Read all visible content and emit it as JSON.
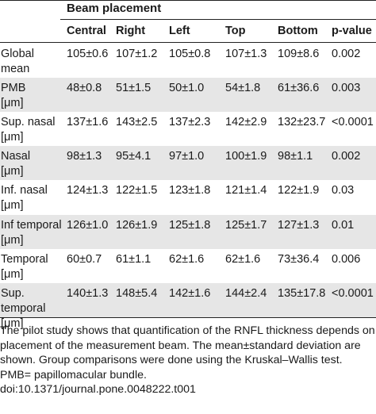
{
  "table": {
    "group_header": "Beam placement",
    "columns": [
      "Central",
      "Right",
      "Left",
      "Top",
      "Bottom",
      "p-value"
    ],
    "rows": [
      {
        "label": "Global mean\n[μm]",
        "values": [
          "105±0.6",
          "107±1.2",
          "105±0.8",
          "107±1.3",
          "109±8.6",
          "0.002"
        ]
      },
      {
        "label": "PMB\n[μm]",
        "values": [
          "48±0.8",
          "51±1.5",
          "50±1.0",
          "54±1.8",
          "61±36.6",
          "0.003"
        ]
      },
      {
        "label": "Sup. nasal\n[μm]",
        "values": [
          "137±1.6",
          "143±2.5",
          "137±2.3",
          "142±2.9",
          "132±23.7",
          "<0.0001"
        ]
      },
      {
        "label": "Nasal\n[μm]",
        "values": [
          "98±1.3",
          "95±4.1",
          "97±1.0",
          "100±1.9",
          "98±1.1",
          "0.002"
        ]
      },
      {
        "label": "Inf. nasal\n[μm]",
        "values": [
          "124±1.3",
          "122±1.5",
          "123±1.8",
          "121±1.4",
          "122±1.9",
          "0.03"
        ]
      },
      {
        "label": "Inf temporal\n[μm]",
        "values": [
          "126±1.0",
          "126±1.9",
          "125±1.8",
          "125±1.7",
          "127±1.3",
          "0.01"
        ]
      },
      {
        "label": "Temporal\n[μm]",
        "values": [
          "60±0.7",
          "61±1.1",
          "62±1.6",
          "62±1.6",
          "73±36.4",
          "0.006"
        ]
      },
      {
        "label": "Sup.\ntemporal [μm]",
        "values": [
          "140±1.3",
          "148±5.4",
          "142±1.6",
          "144±2.4",
          "135±17.8",
          "<0.0001"
        ]
      }
    ]
  },
  "footnote": {
    "lines": [
      "The pilot study shows that quantification of the RNFL thickness depends on placement of the measurement beam. The mean±standard deviation are shown. Group comparisons were done using the Kruskal–Wallis test.",
      "PMB= papillomacular bundle.",
      "doi:10.1371/journal.pone.0048222.t001"
    ]
  }
}
